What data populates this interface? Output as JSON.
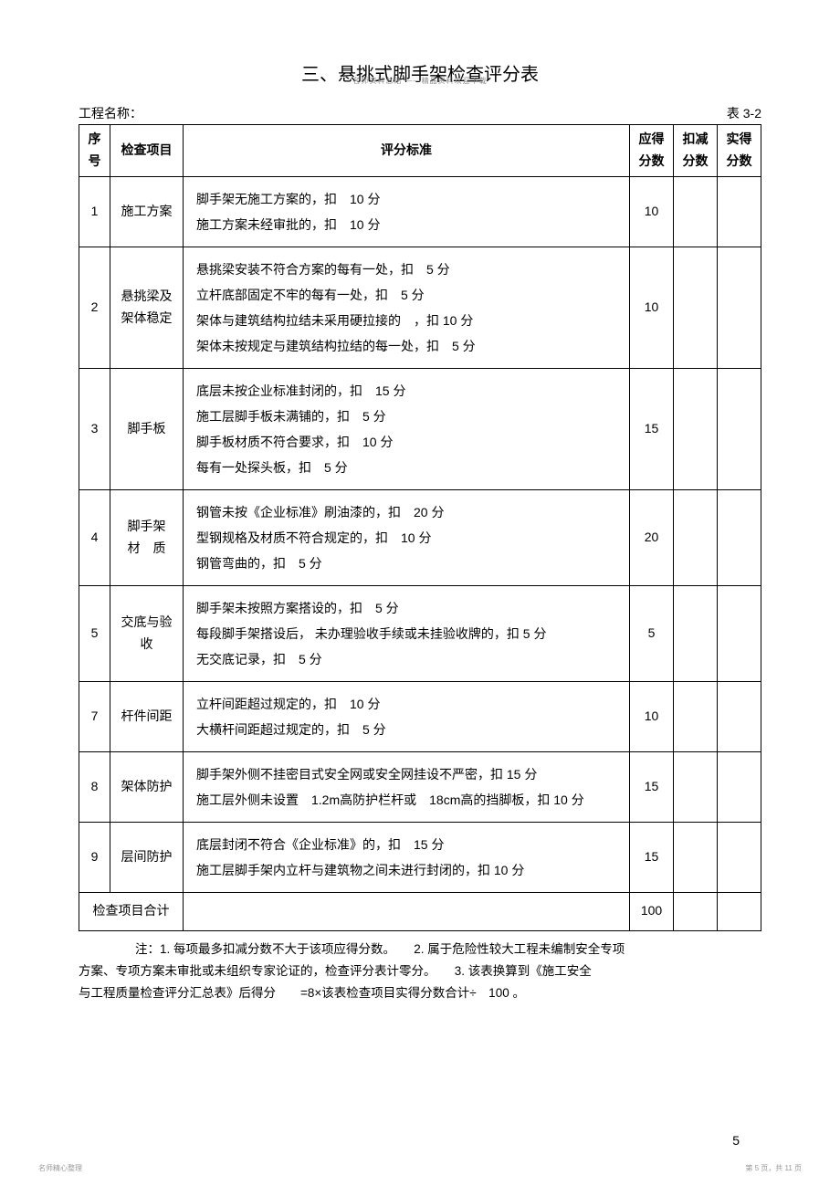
{
  "watermark_top": "名师资料总结 ——精品资料欢迎下载",
  "title": "三、悬挑式脚手架检查评分表",
  "project_label": "工程名称：",
  "table_number": "表 3-2",
  "headers": {
    "num": "序号",
    "item": "检查项目",
    "criteria": "评分标准",
    "max_score": "应得分数",
    "deduct_score": "扣减分数",
    "actual_score": "实得分数"
  },
  "rows": [
    {
      "num": "1",
      "item": "施工方案",
      "criteria": "脚手架无施工方案的，扣　10 分\n施工方案未经审批的，扣　10 分",
      "max": "10"
    },
    {
      "num": "2",
      "item": "悬挑梁及架体稳定",
      "criteria": "悬挑梁安装不符合方案的每有一处，扣　5 分\n立杆底部固定不牢的每有一处，扣　5 分\n架体与建筑结构拉结未采用硬拉接的　，扣 10 分\n架体未按规定与建筑结构拉结的每一处，扣　5 分",
      "max": "10"
    },
    {
      "num": "3",
      "item": "脚手板",
      "criteria": "底层未按企业标准封闭的，扣　15 分\n施工层脚手板未满铺的，扣　5 分\n脚手板材质不符合要求，扣　10 分\n每有一处探头板，扣　5 分",
      "max": "15"
    },
    {
      "num": "4",
      "item": "脚手架\n材　质",
      "criteria": "钢管未按《企业标准》刷油漆的，扣　20 分\n型钢规格及材质不符合规定的，扣　10 分\n钢管弯曲的，扣　5 分",
      "max": "20"
    },
    {
      "num": "5",
      "item": "交底与验收",
      "criteria": "脚手架未按照方案搭设的，扣　5 分\n每段脚手架搭设后， 未办理验收手续或未挂验收牌的，扣 5 分\n无交底记录，扣　5 分",
      "max": "5"
    },
    {
      "num": "7",
      "item": "杆件间距",
      "criteria": "立杆间距超过规定的，扣　10 分\n大横杆间距超过规定的，扣　5 分",
      "max": "10"
    },
    {
      "num": "8",
      "item": "架体防护",
      "criteria": "脚手架外侧不挂密目式安全网或安全网挂设不严密，扣 15 分\n施工层外侧未设置　1.2m高防护栏杆或　18cm高的挡脚板，扣 10 分",
      "max": "15"
    },
    {
      "num": "9",
      "item": "层间防护",
      "criteria": "底层封闭不符合《企业标准》的，扣　15 分\n施工层脚手架内立杆与建筑物之间未进行封闭的，扣 10 分",
      "max": "15"
    }
  ],
  "total_label": "检查项目合计",
  "total_score": "100",
  "notes_line1": "注：1. 每项最多扣减分数不大于该项应得分数。　　2. 属于危险性较大工程未编制安全专项",
  "notes_line2": "方案、专项方案未审批或未组织专家论证的，检查评分表计零分。　　3. 该表换算到《施工安全",
  "notes_line3": "与工程质量检查评分汇总表》后得分　　=8×该表检查项目实得分数合计÷　100 。",
  "page_number": "5",
  "footer_left": "名师精心整理",
  "footer_right": "第 5 页，共 11 页"
}
